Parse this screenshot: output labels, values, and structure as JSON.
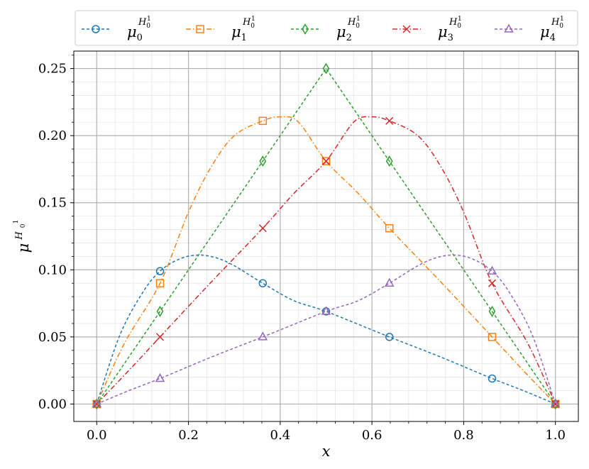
{
  "chart_data": {
    "type": "line",
    "xlabel": "x",
    "ylabel_base": "μ",
    "ylabel_sup": "H",
    "ylabel_sup_sub": "0",
    "ylabel_sup_sup": "1",
    "xlim": [
      -0.05,
      1.05
    ],
    "ylim": [
      -0.013,
      0.263
    ],
    "xticks": [
      0.0,
      0.2,
      0.4,
      0.6,
      0.8,
      1.0
    ],
    "xtick_labels": [
      "0.0",
      "0.2",
      "0.4",
      "0.6",
      "0.8",
      "1.0"
    ],
    "yticks": [
      0.0,
      0.05,
      0.1,
      0.15,
      0.2,
      0.25
    ],
    "ytick_labels": [
      "0.00",
      "0.05",
      "0.10",
      "0.15",
      "0.20",
      "0.25"
    ],
    "grid": true,
    "legend_position": "top",
    "series": [
      {
        "name": "μ0",
        "label_base": "μ",
        "label_sub": "0",
        "label_sup": "H",
        "label_sup_sub": "0",
        "label_sup_sup": "1",
        "color": "#1f77b4",
        "linestyle": "dashed",
        "marker": "circle",
        "marker_x": [
          0.0,
          0.138,
          0.362,
          0.5,
          0.638,
          0.862,
          1.0
        ],
        "marker_y": [
          0.0,
          0.099,
          0.09,
          0.069,
          0.05,
          0.019,
          0.0
        ],
        "curve_x": [
          0.0,
          0.05,
          0.1,
          0.138,
          0.18,
          0.22,
          0.26,
          0.3,
          0.362,
          0.43,
          0.5,
          0.638,
          0.75,
          0.862,
          0.93,
          1.0
        ],
        "curve_y": [
          0.0,
          0.051,
          0.083,
          0.099,
          0.108,
          0.111,
          0.109,
          0.103,
          0.09,
          0.077,
          0.069,
          0.05,
          0.035,
          0.019,
          0.01,
          0.0
        ]
      },
      {
        "name": "μ1",
        "label_base": "μ",
        "label_sub": "1",
        "label_sup": "H",
        "label_sup_sub": "0",
        "label_sup_sup": "1",
        "color": "#ff7f0e",
        "linestyle": "dashdot",
        "marker": "square",
        "marker_x": [
          0.0,
          0.138,
          0.362,
          0.5,
          0.638,
          0.862,
          1.0
        ],
        "marker_y": [
          0.0,
          0.09,
          0.211,
          0.181,
          0.131,
          0.05,
          0.0
        ],
        "curve_x": [
          0.0,
          0.06,
          0.138,
          0.2,
          0.25,
          0.3,
          0.362,
          0.4,
          0.44,
          0.5,
          0.57,
          0.638,
          0.75,
          0.862,
          0.93,
          1.0
        ],
        "curve_y": [
          0.0,
          0.045,
          0.09,
          0.143,
          0.177,
          0.2,
          0.211,
          0.214,
          0.21,
          0.181,
          0.157,
          0.131,
          0.091,
          0.05,
          0.025,
          0.0
        ]
      },
      {
        "name": "μ2",
        "label_base": "μ",
        "label_sub": "2",
        "label_sup": "H",
        "label_sup_sub": "0",
        "label_sup_sup": "1",
        "color": "#2ca02c",
        "linestyle": "dashed",
        "marker": "diamond",
        "marker_x": [
          0.0,
          0.138,
          0.362,
          0.5,
          0.638,
          0.862,
          1.0
        ],
        "marker_y": [
          0.0,
          0.069,
          0.181,
          0.25,
          0.181,
          0.069,
          0.0
        ],
        "curve_x": [
          0.0,
          0.138,
          0.362,
          0.5,
          0.638,
          0.862,
          1.0
        ],
        "curve_y": [
          0.0,
          0.069,
          0.181,
          0.25,
          0.181,
          0.069,
          0.0
        ]
      },
      {
        "name": "μ3",
        "label_base": "μ",
        "label_sub": "3",
        "label_sup": "H",
        "label_sup_sub": "0",
        "label_sup_sup": "1",
        "color": "#d62728",
        "linestyle": "dashdot",
        "marker": "x",
        "marker_x": [
          0.0,
          0.138,
          0.362,
          0.5,
          0.638,
          0.862,
          1.0
        ],
        "marker_y": [
          0.0,
          0.05,
          0.131,
          0.181,
          0.211,
          0.09,
          0.0
        ],
        "curve_x": [
          0.0,
          0.07,
          0.138,
          0.25,
          0.362,
          0.43,
          0.5,
          0.56,
          0.6,
          0.638,
          0.7,
          0.75,
          0.8,
          0.862,
          0.94,
          1.0
        ],
        "curve_y": [
          0.0,
          0.025,
          0.05,
          0.091,
          0.131,
          0.157,
          0.181,
          0.21,
          0.214,
          0.211,
          0.2,
          0.177,
          0.143,
          0.09,
          0.045,
          0.0
        ]
      },
      {
        "name": "μ4",
        "label_base": "μ",
        "label_sub": "4",
        "label_sup": "H",
        "label_sup_sub": "0",
        "label_sup_sup": "1",
        "color": "#9467bd",
        "linestyle": "dashed",
        "marker": "triangle",
        "marker_x": [
          0.0,
          0.138,
          0.362,
          0.5,
          0.638,
          0.862,
          1.0
        ],
        "marker_y": [
          0.0,
          0.019,
          0.05,
          0.069,
          0.09,
          0.099,
          0.0
        ],
        "curve_x": [
          0.0,
          0.07,
          0.138,
          0.25,
          0.362,
          0.5,
          0.57,
          0.638,
          0.7,
          0.74,
          0.78,
          0.82,
          0.862,
          0.9,
          0.95,
          1.0
        ],
        "curve_y": [
          0.0,
          0.01,
          0.019,
          0.035,
          0.05,
          0.069,
          0.077,
          0.09,
          0.103,
          0.109,
          0.111,
          0.108,
          0.099,
          0.083,
          0.051,
          0.0
        ]
      }
    ]
  }
}
